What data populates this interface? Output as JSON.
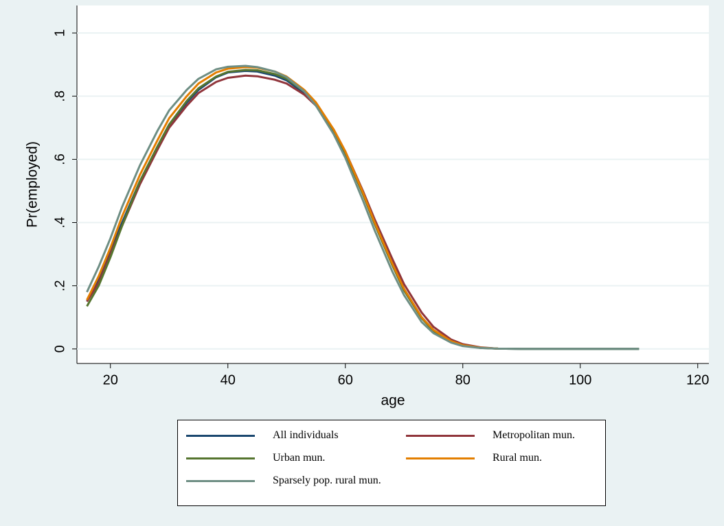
{
  "chart_data": {
    "type": "line",
    "y_label": "Pr(employed)",
    "x_label": "age",
    "xlim": [
      14.3,
      121.9
    ],
    "ylim": [
      -0.046,
      1.087
    ],
    "xticks": [
      20,
      40,
      60,
      80,
      100,
      120
    ],
    "yticks": [
      0,
      {
        "value": 0.2,
        "label": ".2"
      },
      {
        "value": 0.4,
        "label": ".4"
      },
      {
        "value": 0.6,
        "label": ".6"
      },
      {
        "value": 0.8,
        "label": ".8"
      },
      1
    ],
    "grid": true,
    "legend": "bottom",
    "x": [
      16,
      18,
      20,
      22,
      25,
      28,
      30,
      33,
      35,
      38,
      40,
      43,
      45,
      48,
      50,
      53,
      55,
      58,
      60,
      63,
      65,
      68,
      70,
      73,
      75,
      78,
      80,
      83,
      86,
      90,
      100,
      110
    ],
    "series": [
      {
        "name": "All individuals",
        "color": "#1a476f",
        "values": [
          0.15,
          0.22,
          0.31,
          0.4,
          0.53,
          0.64,
          0.71,
          0.78,
          0.82,
          0.86,
          0.875,
          0.88,
          0.878,
          0.865,
          0.85,
          0.81,
          0.77,
          0.69,
          0.62,
          0.49,
          0.4,
          0.27,
          0.19,
          0.1,
          0.06,
          0.025,
          0.012,
          0.004,
          0.001,
          0,
          0,
          0
        ]
      },
      {
        "name": "Metropolitan mun.",
        "color": "#90353b",
        "values": [
          0.15,
          0.21,
          0.3,
          0.39,
          0.52,
          0.63,
          0.7,
          0.77,
          0.81,
          0.845,
          0.858,
          0.865,
          0.863,
          0.852,
          0.84,
          0.805,
          0.77,
          0.695,
          0.625,
          0.5,
          0.41,
          0.285,
          0.205,
          0.115,
          0.07,
          0.03,
          0.015,
          0.005,
          0.001,
          null,
          null,
          null
        ]
      },
      {
        "name": "Urban mun.",
        "color": "#55752f",
        "values": [
          0.135,
          0.2,
          0.29,
          0.39,
          0.53,
          0.64,
          0.71,
          0.785,
          0.825,
          0.862,
          0.877,
          0.883,
          0.882,
          0.87,
          0.855,
          0.815,
          0.775,
          0.69,
          0.62,
          0.49,
          0.395,
          0.265,
          0.185,
          0.097,
          0.057,
          0.023,
          0.011,
          0.003,
          0.001,
          0,
          0,
          0
        ]
      },
      {
        "name": "Rural mun.",
        "color": "#e37e00",
        "values": [
          0.155,
          0.23,
          0.32,
          0.42,
          0.55,
          0.66,
          0.73,
          0.8,
          0.84,
          0.875,
          0.887,
          0.892,
          0.89,
          0.878,
          0.862,
          0.82,
          0.78,
          0.695,
          0.625,
          0.495,
          0.4,
          0.27,
          0.19,
          0.1,
          0.06,
          0.025,
          0.012,
          0.004,
          0.001,
          null,
          null,
          null
        ]
      },
      {
        "name": "Sparsely pop. rural mun.",
        "color": "#6e8e84",
        "values": [
          0.18,
          0.26,
          0.35,
          0.45,
          0.58,
          0.69,
          0.755,
          0.82,
          0.855,
          0.885,
          0.893,
          0.896,
          0.892,
          0.878,
          0.86,
          0.815,
          0.77,
          0.68,
          0.605,
          0.47,
          0.375,
          0.245,
          0.17,
          0.085,
          0.05,
          0.02,
          0.009,
          0.003,
          0.001,
          0,
          0,
          0
        ]
      }
    ]
  }
}
